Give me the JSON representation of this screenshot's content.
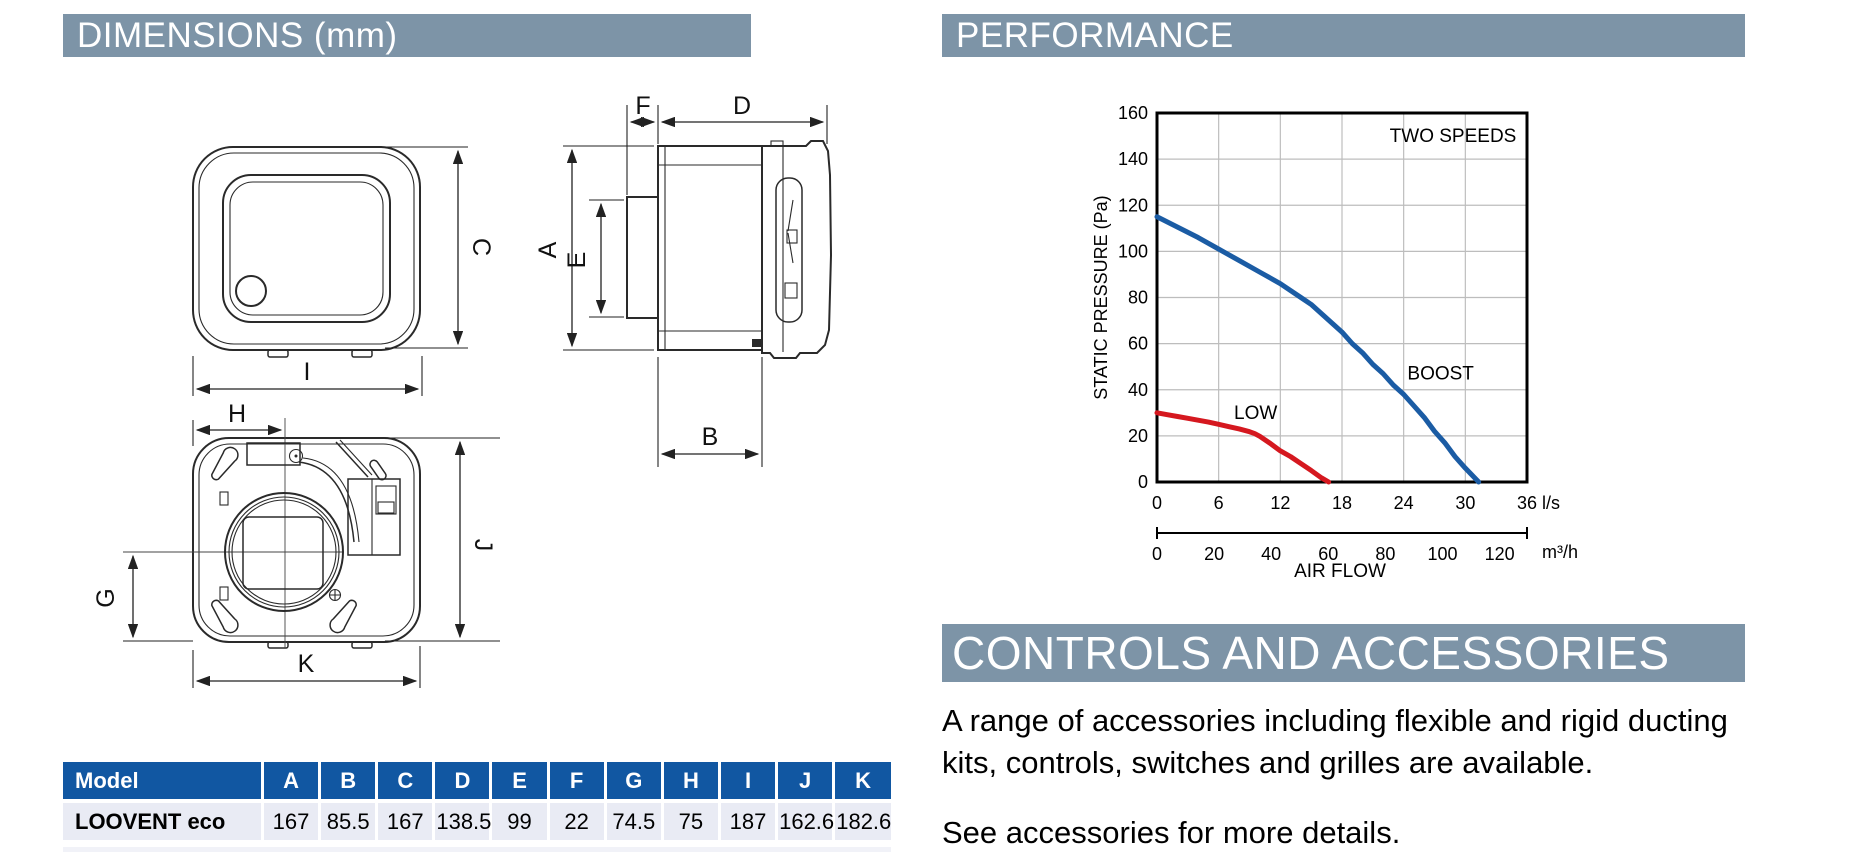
{
  "colors": {
    "section_header_bg": "#7d94a7",
    "section_header_text": "#ffffff",
    "table_header_bg": "#1157a2",
    "table_row_bg": "#e9ebf4",
    "boost_curve": "#1b5ca4",
    "low_curve": "#d5181f"
  },
  "sections": {
    "dimensions": {
      "title": "DIMENSIONS (mm)"
    },
    "performance": {
      "title": "PERFORMANCE"
    },
    "controls": {
      "title": "CONTROLS AND ACCESSORIES",
      "paragraph1": "A range of accessories including flexible and rigid ducting kits, controls, switches and grilles are available.",
      "paragraph2": "See accessories for more details."
    }
  },
  "drawing": {
    "front": {
      "width_label": "I",
      "height_label": "C"
    },
    "side": {
      "spigot_depth_label": "F",
      "depth_label": "D",
      "height_label": "A",
      "spigot_height_label": "E",
      "body_depth_label": "B"
    },
    "back": {
      "center_x_label": "H",
      "center_y_label": "G",
      "height_label": "J",
      "width_label": "K"
    }
  },
  "table": {
    "headers": [
      "Model",
      "A",
      "B",
      "C",
      "D",
      "E",
      "F",
      "G",
      "H",
      "I",
      "J",
      "K"
    ],
    "rows": [
      [
        "LOOVENT eco",
        "167",
        "85.5",
        "167",
        "138.5",
        "99",
        "22",
        "74.5",
        "75",
        "187",
        "162.6",
        "182.6"
      ]
    ]
  },
  "chart_data": {
    "type": "line",
    "title": "",
    "xlabel": "AIR FLOW",
    "ylabel": "STATIC PRESSURE (Pa)",
    "x_unit_primary": "l/s",
    "x_unit_secondary": "m³/h",
    "xlim": [
      0,
      36
    ],
    "ylim": [
      0,
      160
    ],
    "x_ticks": [
      0,
      6,
      12,
      18,
      24,
      30,
      36
    ],
    "y_ticks": [
      0,
      20,
      40,
      60,
      80,
      100,
      120,
      140,
      160
    ],
    "secondary_x_ticks": [
      0,
      20,
      40,
      60,
      80,
      100,
      120
    ],
    "secondary_x_max_equiv": 129.6,
    "grid": true,
    "grid_color": "#bdbdbd",
    "legend_position": "none",
    "annotations": [
      {
        "text": "TWO SPEEDS",
        "x": 28.8,
        "y": 150
      },
      {
        "text": "BOOST",
        "x": 27.6,
        "y": 47
      },
      {
        "text": "LOW",
        "x": 9.6,
        "y": 30
      }
    ],
    "series": [
      {
        "name": "BOOST",
        "color": "#1b5ca4",
        "points": [
          [
            0,
            115
          ],
          [
            2,
            110.5
          ],
          [
            4,
            106
          ],
          [
            6,
            101
          ],
          [
            8,
            96
          ],
          [
            10,
            91
          ],
          [
            12,
            86
          ],
          [
            14,
            80
          ],
          [
            15,
            77
          ],
          [
            16,
            73
          ],
          [
            17,
            69
          ],
          [
            18,
            65
          ],
          [
            19,
            60
          ],
          [
            20,
            56
          ],
          [
            21,
            51
          ],
          [
            22,
            47
          ],
          [
            23,
            42
          ],
          [
            24,
            38
          ],
          [
            25,
            33
          ],
          [
            26,
            28
          ],
          [
            27,
            22
          ],
          [
            28,
            17
          ],
          [
            29,
            11
          ],
          [
            30,
            6
          ],
          [
            31.3,
            0
          ]
        ]
      },
      {
        "name": "LOW",
        "color": "#d5181f",
        "points": [
          [
            0,
            30
          ],
          [
            1,
            29.2
          ],
          [
            2,
            28.4
          ],
          [
            3,
            27.6
          ],
          [
            4,
            26.8
          ],
          [
            5,
            26
          ],
          [
            6,
            25
          ],
          [
            7,
            24
          ],
          [
            8,
            23
          ],
          [
            9,
            21.8
          ],
          [
            9.5,
            21
          ],
          [
            10,
            19.8
          ],
          [
            11,
            16.8
          ],
          [
            12,
            13.5
          ],
          [
            13,
            11
          ],
          [
            14,
            8
          ],
          [
            15,
            5
          ],
          [
            16,
            1.8
          ],
          [
            16.7,
            0
          ]
        ]
      }
    ]
  }
}
